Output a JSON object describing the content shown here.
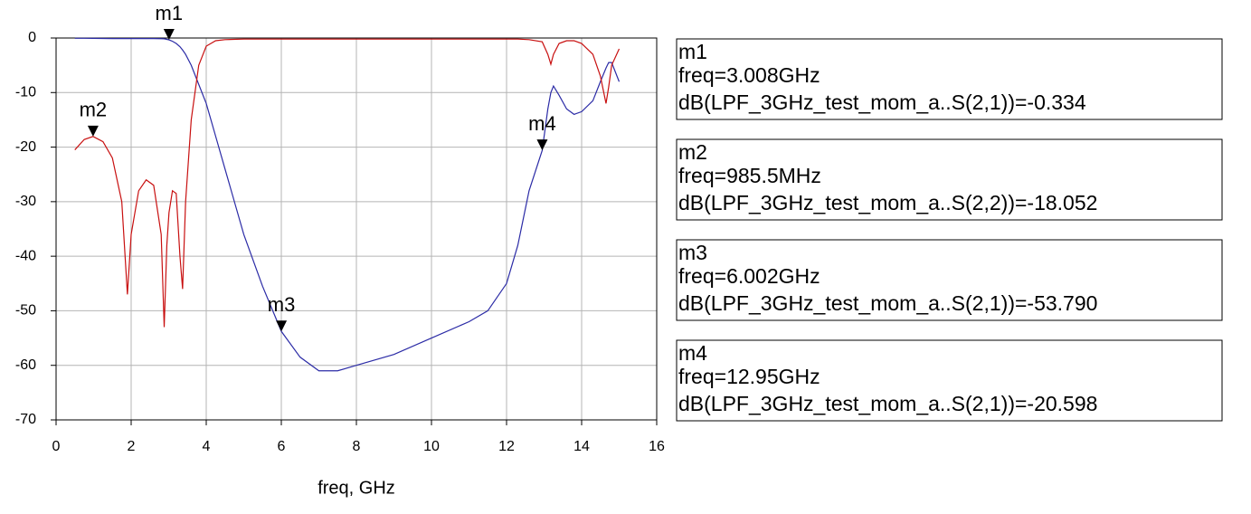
{
  "chart_data": {
    "type": "line",
    "xlabel": "freq, GHz",
    "xlim": [
      0,
      16
    ],
    "xticks": [
      0,
      2,
      4,
      6,
      8,
      10,
      12,
      14,
      16
    ],
    "ylim": [
      -70,
      0
    ],
    "yticks": [
      0,
      -10,
      -20,
      -30,
      -40,
      -50,
      -60,
      -70
    ],
    "grid": true,
    "x": [
      0.5,
      0.75,
      0.9855,
      1.25,
      1.5,
      1.75,
      1.9,
      2.0,
      2.2,
      2.4,
      2.6,
      2.8,
      2.88,
      2.95,
      3.008,
      3.1,
      3.2,
      3.3,
      3.37,
      3.45,
      3.6,
      3.8,
      4.0,
      4.25,
      4.5,
      5,
      5.5,
      6.002,
      6.5,
      7,
      7.5,
      8,
      9,
      10,
      11,
      11.5,
      12,
      12.3,
      12.6,
      12.95,
      13.1,
      13.18,
      13.25,
      13.4,
      13.6,
      13.8,
      14,
      14.3,
      14.5,
      14.65,
      14.72,
      14.8,
      15
    ],
    "series": [
      {
        "color": "#2b2ba6",
        "values": [
          -0.05,
          -0.05,
          -0.06,
          -0.08,
          -0.1,
          -0.1,
          -0.1,
          -0.1,
          -0.1,
          -0.1,
          -0.1,
          -0.12,
          -0.15,
          -0.25,
          -0.334,
          -0.6,
          -1,
          -1.6,
          -2.2,
          -3,
          -5,
          -8.5,
          -12,
          -18,
          -24,
          -36,
          -45.5,
          -53.79,
          -58.5,
          -61,
          -61,
          -60,
          -58,
          -55,
          -52,
          -50,
          -45,
          -38,
          -28,
          -20.598,
          -13,
          -10,
          -8.8,
          -10.5,
          -13,
          -14,
          -13.5,
          -11.5,
          -8,
          -5.5,
          -4.5,
          -4.5,
          -8
        ]
      },
      {
        "color": "#c81010",
        "values": [
          -20.5,
          -18.6,
          -18.052,
          -19,
          -22,
          -30,
          -47,
          -36,
          -28,
          -26,
          -27,
          -36,
          -53,
          -38,
          -32,
          -28,
          -28.5,
          -40,
          -46,
          -30,
          -15,
          -5,
          -1.5,
          -0.5,
          -0.3,
          -0.2,
          -0.2,
          -0.2,
          -0.2,
          -0.2,
          -0.2,
          -0.2,
          -0.2,
          -0.2,
          -0.2,
          -0.2,
          -0.2,
          -0.2,
          -0.3,
          -0.7,
          -3,
          -4.8,
          -3,
          -1,
          -0.5,
          -0.5,
          -1,
          -3,
          -7,
          -12,
          -9,
          -5,
          -2
        ]
      }
    ],
    "markers": [
      {
        "name": "m1",
        "x": 3.008,
        "y": -0.334,
        "freq_label": "freq=3.008GHz",
        "value_label": "dB(LPF_3GHz_test_mom_a..S(2,1))=-0.334"
      },
      {
        "name": "m2",
        "x": 0.9855,
        "y": -18.052,
        "freq_label": "freq=985.5MHz",
        "value_label": "dB(LPF_3GHz_test_mom_a..S(2,2))=-18.052"
      },
      {
        "name": "m3",
        "x": 6.002,
        "y": -53.79,
        "freq_label": "freq=6.002GHz",
        "value_label": "dB(LPF_3GHz_test_mom_a..S(2,1))=-53.790"
      },
      {
        "name": "m4",
        "x": 12.95,
        "y": -20.598,
        "freq_label": "freq=12.95GHz",
        "value_label": "dB(LPF_3GHz_test_mom_a..S(2,1))=-20.598"
      }
    ]
  }
}
